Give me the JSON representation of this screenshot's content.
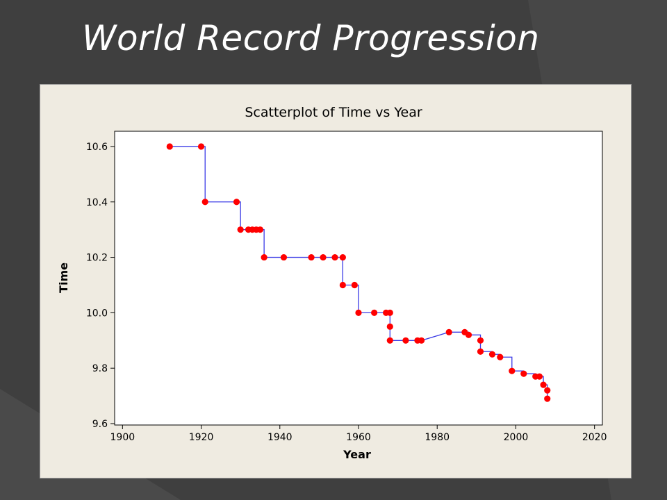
{
  "slide": {
    "title": "World Record Progression"
  },
  "colors": {
    "background": "#3f3f3f",
    "panel": "#efebe1",
    "line": "#3a3ae6",
    "points": "#ff0000"
  },
  "chart_data": {
    "type": "scatter",
    "connected": true,
    "title": "Scatterplot of Time vs Year",
    "xlabel": "Year",
    "ylabel": "Time",
    "xlim": [
      1898,
      2022
    ],
    "ylim": [
      9.595,
      10.655
    ],
    "xticks": [
      "1900",
      "1920",
      "1940",
      "1960",
      "1980",
      "2000",
      "2020"
    ],
    "yticks": [
      "9.6",
      "9.8",
      "10.0",
      "10.2",
      "10.4",
      "10.6"
    ],
    "grid": false,
    "x": [
      1912,
      1920,
      1921,
      1929,
      1930,
      1932,
      1933,
      1934,
      1935,
      1936,
      1941,
      1948,
      1951,
      1954,
      1956,
      1956,
      1959,
      1960,
      1964,
      1967,
      1968,
      1968,
      1968,
      1972,
      1975,
      1976,
      1983,
      1987,
      1988,
      1991,
      1991,
      1994,
      1996,
      1999,
      2002,
      2005,
      2006,
      2007,
      2008,
      2008
    ],
    "y": [
      10.6,
      10.6,
      10.4,
      10.4,
      10.3,
      10.3,
      10.3,
      10.3,
      10.3,
      10.2,
      10.2,
      10.2,
      10.2,
      10.2,
      10.2,
      10.1,
      10.1,
      10.0,
      10.0,
      10.0,
      10.0,
      9.95,
      9.9,
      9.9,
      9.9,
      9.9,
      9.93,
      9.93,
      9.92,
      9.9,
      9.86,
      9.85,
      9.84,
      9.79,
      9.78,
      9.77,
      9.77,
      9.74,
      9.72,
      9.69
    ]
  }
}
